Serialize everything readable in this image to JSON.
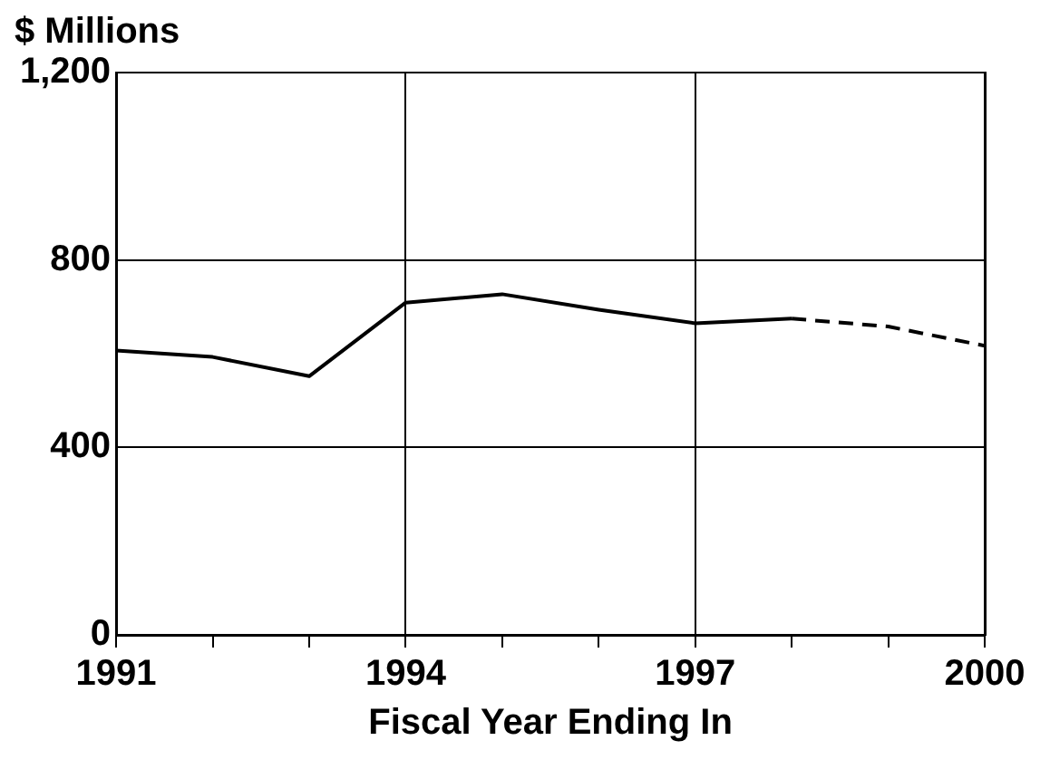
{
  "chart_data": {
    "type": "line",
    "ylabel": "$ Millions",
    "xlabel": "Fiscal Year Ending In",
    "series": [
      {
        "color": "#000000",
        "line_style": "solid",
        "x": [
          1991,
          1992,
          1993,
          1994,
          1995,
          1996,
          1997,
          1998
        ],
        "values": [
          607,
          593,
          552,
          709,
          727,
          694,
          665,
          675
        ]
      },
      {
        "color": "#000000",
        "line_style": "dashed",
        "x": [
          1998,
          1999,
          2000
        ],
        "values": [
          675,
          658,
          617
        ]
      }
    ],
    "xlim": [
      1991,
      2000
    ],
    "xticks": [
      1991,
      {
        "value": 1992,
        "label": null
      },
      {
        "value": 1993,
        "label": null
      },
      1994,
      {
        "value": 1995,
        "label": null
      },
      {
        "value": 1996,
        "label": null
      },
      1997,
      {
        "value": 1998,
        "label": null
      },
      {
        "value": 1999,
        "label": null
      },
      2000
    ],
    "ylim": [
      0,
      1200
    ],
    "yticks": [
      0,
      400,
      800,
      {
        "value": 1200,
        "label": "1,200"
      }
    ],
    "grid": true,
    "legend": false,
    "marker": "none"
  }
}
